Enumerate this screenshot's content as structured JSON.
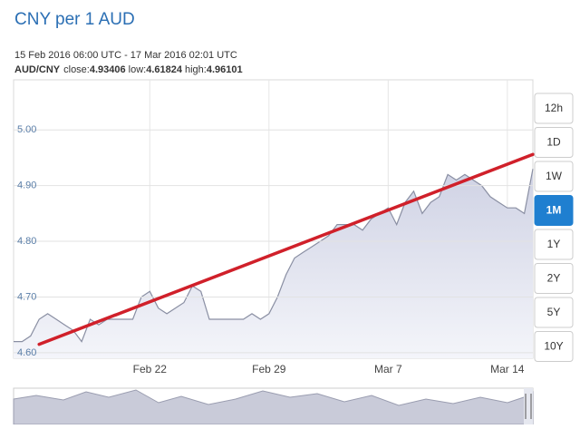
{
  "chart_data": {
    "type": "area",
    "title": "CNY per 1 AUD",
    "subtitle": "15 Feb 2016 06:00 UTC - 17 Mar 2016 02:01 UTC",
    "pair": "AUD/CNY",
    "stats": [
      {
        "label": "close:",
        "value": 4.93406
      },
      {
        "label": "low:",
        "value": 4.61824
      },
      {
        "label": "high:",
        "value": 4.96101
      }
    ],
    "categories": [
      null,
      null,
      null,
      null,
      null,
      null,
      null,
      null,
      null,
      null,
      null,
      null,
      null,
      null,
      null,
      null,
      "Feb 22",
      null,
      null,
      null,
      null,
      null,
      null,
      null,
      null,
      null,
      null,
      null,
      null,
      null,
      "Feb 29",
      null,
      null,
      null,
      null,
      null,
      null,
      null,
      null,
      null,
      null,
      null,
      null,
      null,
      "Mar 7",
      null,
      null,
      null,
      null,
      null,
      null,
      null,
      null,
      null,
      null,
      null,
      null,
      null,
      "Mar 14",
      null,
      null,
      null
    ],
    "series": [
      {
        "color": "#8a8fa3",
        "values": [
          4.62,
          4.62,
          4.63,
          4.66,
          4.67,
          4.66,
          4.65,
          4.64,
          4.62,
          4.66,
          4.65,
          4.66,
          4.66,
          4.66,
          4.66,
          4.7,
          4.71,
          4.68,
          4.67,
          4.68,
          4.69,
          4.72,
          4.71,
          4.66,
          4.66,
          4.66,
          4.66,
          4.66,
          4.67,
          4.66,
          4.67,
          4.7,
          4.74,
          4.77,
          4.78,
          4.79,
          4.8,
          4.81,
          4.83,
          4.83,
          4.83,
          4.82,
          4.84,
          4.85,
          4.86,
          4.83,
          4.87,
          4.89,
          4.85,
          4.87,
          4.88,
          4.92,
          4.91,
          4.92,
          4.91,
          4.9,
          4.88,
          4.87,
          4.86,
          4.86,
          4.85,
          4.93
        ]
      }
    ],
    "trend_line": {
      "color": "#d0202a",
      "values": [
        4.615,
        4.956
      ]
    },
    "ylim": [
      4.59,
      5.09
    ],
    "yticks": [
      {
        "value": 4.6,
        "label": "4.60"
      },
      {
        "value": 4.7,
        "label": "4.70"
      },
      {
        "value": 4.8,
        "label": "4.80"
      },
      {
        "value": 4.9,
        "label": "4.90"
      },
      {
        "value": 5.0,
        "label": "5.00"
      }
    ],
    "grid": true,
    "range_buttons": {
      "labels": [
        "12h",
        "1D",
        "1W",
        "1M",
        "1Y",
        "2Y",
        "5Y",
        "10Y"
      ],
      "active": "1M"
    }
  }
}
